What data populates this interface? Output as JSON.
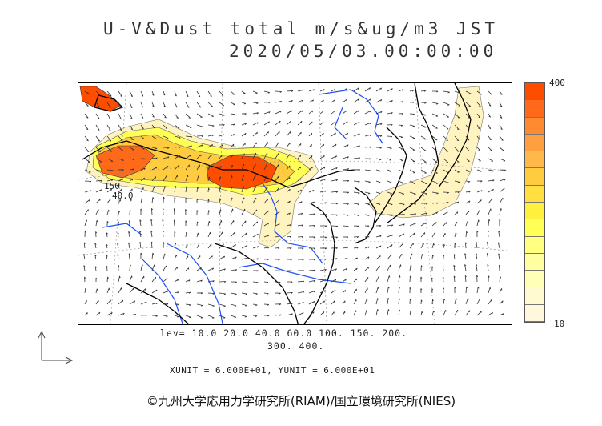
{
  "title": {
    "line1": "U-V&Dust total m/s&ug/m3 JST",
    "line2": "2020/05/03.00:00:00"
  },
  "colorbar": {
    "max_label": "400",
    "min_label": "10",
    "colors": [
      "#ff4d00",
      "#ff6a1a",
      "#ff8a30",
      "#ffa040",
      "#ffb84a",
      "#ffcc40",
      "#ffe040",
      "#fff040",
      "#ffff55",
      "#ffff80",
      "#ffffa0",
      "#ffffb8",
      "#fffad0",
      "#fff8dc"
    ]
  },
  "levels": {
    "line1": "lev= 10.0 20.0 40.0 60.0 100. 150. 200.",
    "line2": "300. 400."
  },
  "units": "XUNIT = 6.000E+01, YUNIT = 6.000E+01",
  "map_labels": {
    "contour_a": "150",
    "contour_b": "40.0"
  },
  "credit": "©九州大学応用力学研究所(RIAM)/国立環境研究所(NIES)",
  "colors": {
    "high": "#ff4d00",
    "mid": "#ffcc40",
    "low": "#fff4c0",
    "river": "#1a4fff",
    "coast": "#000000"
  }
}
